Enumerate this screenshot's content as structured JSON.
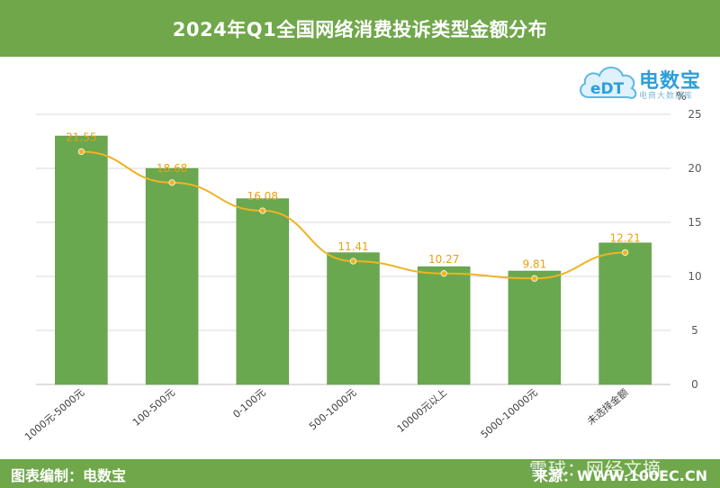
{
  "header": {
    "title": "2024年Q1全国网络消费投诉类型金额分布"
  },
  "logo": {
    "name": "电数宝",
    "sub": "电商大数据库",
    "cloud_text": "eDT"
  },
  "footer": {
    "left": "图表编制：电数宝",
    "right": "来源：WWW.100EC.CN"
  },
  "watermark": "雪球：网经文摘",
  "colors": {
    "bar": "#6aa84f",
    "line": "#f0b323",
    "label": "#e8a20c",
    "header": "#6fa74a",
    "grid": "#d9d9d9"
  },
  "chart_data": {
    "type": "bar",
    "categories": [
      "1000元-5000元",
      "100-500元",
      "0-100元",
      "500-1000元",
      "10000元以上",
      "5000-10000元",
      "未选择金额"
    ],
    "bar_values": [
      23.0,
      20.0,
      17.2,
      12.2,
      10.9,
      10.5,
      13.1
    ],
    "line_values": [
      21.55,
      18.68,
      16.08,
      11.41,
      10.27,
      9.81,
      12.21
    ],
    "data_labels": [
      "21.55",
      "18.68",
      "16.08",
      "11.41",
      "10.27",
      "9.81",
      "12.21"
    ],
    "ylabel": "%",
    "ylim": [
      0,
      25
    ],
    "yticks": [
      0,
      5,
      10,
      15,
      20,
      25
    ],
    "grid": true,
    "y_axis_position": "right"
  }
}
